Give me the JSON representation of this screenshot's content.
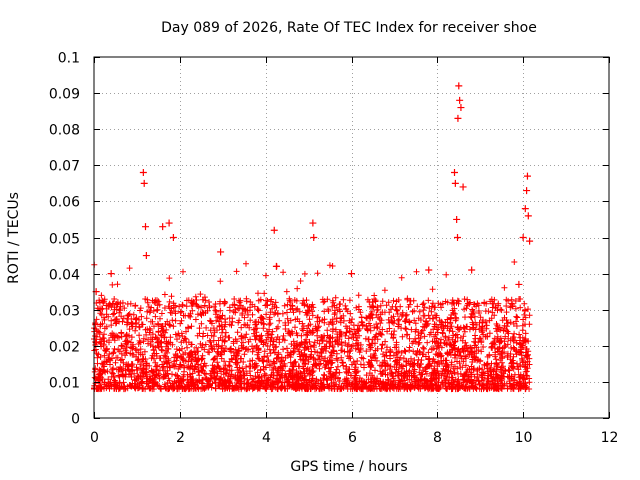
{
  "chart_data": {
    "type": "scatter",
    "title": "Day 089 of 2026, Rate Of TEC Index for receiver shoe",
    "xlabel": "GPS time / hours",
    "ylabel": "ROTI / TECUs",
    "xlim": [
      0,
      12
    ],
    "ylim": [
      0,
      0.1
    ],
    "grid": true,
    "x_ticks": [
      0,
      2,
      4,
      6,
      8,
      10,
      12
    ],
    "x_tick_labels": [
      "0",
      "2",
      "4",
      "6",
      "8",
      "10",
      "12"
    ],
    "y_ticks": [
      0,
      0.01,
      0.02,
      0.03,
      0.04,
      0.05,
      0.06,
      0.07,
      0.08,
      0.09,
      0.1
    ],
    "y_tick_labels": [
      "0",
      "0.01",
      "0.02",
      "0.03",
      "0.04",
      "0.05",
      "0.06",
      "0.07",
      "0.08",
      "0.09",
      "0.1"
    ],
    "marker": "+",
    "marker_color": "#ff0000",
    "series": [
      {
        "name": "ROTI",
        "x_range": [
          0,
          10.15
        ],
        "typical_range": [
          0.005,
          0.03
        ],
        "outliers": [
          {
            "x": 0.05,
            "y": 0.035
          },
          {
            "x": 0.4,
            "y": 0.04
          },
          {
            "x": 1.15,
            "y": 0.068
          },
          {
            "x": 1.17,
            "y": 0.065
          },
          {
            "x": 1.2,
            "y": 0.053
          },
          {
            "x": 1.22,
            "y": 0.045
          },
          {
            "x": 1.6,
            "y": 0.053
          },
          {
            "x": 1.75,
            "y": 0.054
          },
          {
            "x": 1.85,
            "y": 0.05
          },
          {
            "x": 2.95,
            "y": 0.046
          },
          {
            "x": 4.2,
            "y": 0.052
          },
          {
            "x": 4.25,
            "y": 0.042
          },
          {
            "x": 5.1,
            "y": 0.054
          },
          {
            "x": 5.12,
            "y": 0.05
          },
          {
            "x": 6.0,
            "y": 0.04
          },
          {
            "x": 7.8,
            "y": 0.041
          },
          {
            "x": 8.4,
            "y": 0.068
          },
          {
            "x": 8.42,
            "y": 0.065
          },
          {
            "x": 8.45,
            "y": 0.055
          },
          {
            "x": 8.47,
            "y": 0.05
          },
          {
            "x": 8.48,
            "y": 0.083
          },
          {
            "x": 8.5,
            "y": 0.092
          },
          {
            "x": 8.52,
            "y": 0.088
          },
          {
            "x": 8.55,
            "y": 0.086
          },
          {
            "x": 8.6,
            "y": 0.064
          },
          {
            "x": 8.8,
            "y": 0.041
          },
          {
            "x": 9.9,
            "y": 0.037
          },
          {
            "x": 10.0,
            "y": 0.05
          },
          {
            "x": 10.05,
            "y": 0.058
          },
          {
            "x": 10.08,
            "y": 0.063
          },
          {
            "x": 10.1,
            "y": 0.067
          },
          {
            "x": 10.12,
            "y": 0.056
          },
          {
            "x": 10.15,
            "y": 0.049
          }
        ]
      }
    ]
  }
}
